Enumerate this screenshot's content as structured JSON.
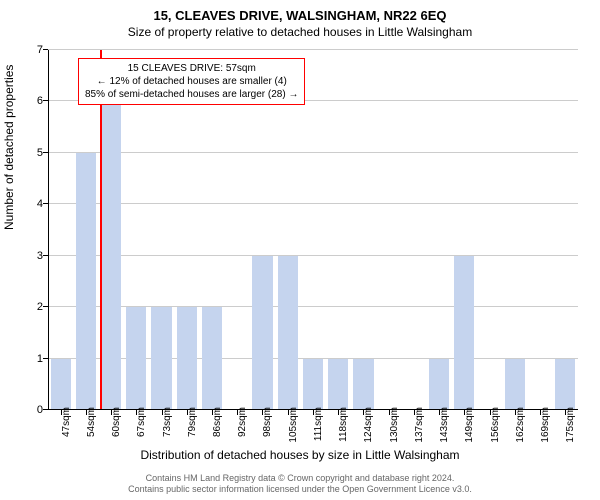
{
  "title": "15, CLEAVES DRIVE, WALSINGHAM, NR22 6EQ",
  "subtitle": "Size of property relative to detached houses in Little Walsingham",
  "y_axis_label": "Number of detached properties",
  "x_axis_label": "Distribution of detached houses by size in Little Walsingham",
  "footer_line1": "Contains HM Land Registry data © Crown copyright and database right 2024.",
  "footer_line2": "Contains public sector information licensed under the Open Government Licence v3.0.",
  "chart": {
    "type": "bar",
    "ylim": [
      0,
      7
    ],
    "ytick_step": 1,
    "background_color": "#ffffff",
    "grid_color": "#cccccc",
    "bar_color": "#c5d4ee",
    "bar_width": 0.8,
    "categories": [
      "47sqm",
      "54sqm",
      "60sqm",
      "67sqm",
      "73sqm",
      "79sqm",
      "86sqm",
      "92sqm",
      "98sqm",
      "105sqm",
      "111sqm",
      "118sqm",
      "124sqm",
      "130sqm",
      "137sqm",
      "143sqm",
      "149sqm",
      "156sqm",
      "162sqm",
      "169sqm",
      "175sqm"
    ],
    "values": [
      1,
      5,
      6,
      2,
      2,
      2,
      2,
      0,
      3,
      3,
      1,
      1,
      1,
      0,
      0,
      1,
      3,
      0,
      1,
      0,
      1
    ],
    "title_fontsize": 13,
    "label_fontsize": 12,
    "tick_fontsize": 10
  },
  "marker": {
    "color": "#ff0000",
    "position_category_index": 1.55
  },
  "callout": {
    "border_color": "#ff0000",
    "background_color": "#ffffff",
    "line1": "15 CLEAVES DRIVE: 57sqm",
    "line2": "← 12% of detached houses are smaller (4)",
    "line3": "85% of semi-detached houses are larger (28) →"
  }
}
